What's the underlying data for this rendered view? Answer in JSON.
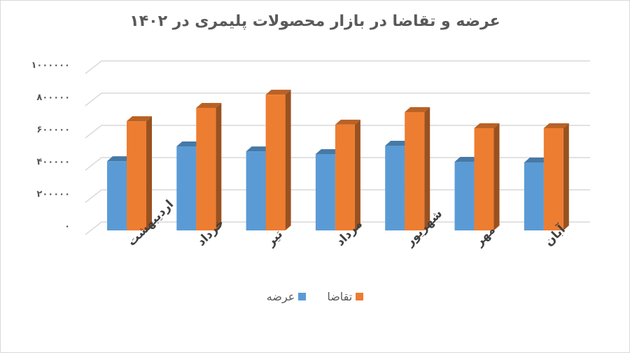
{
  "chart_data": {
    "type": "bar",
    "style": "3d-clustered-column",
    "title": "عرضه و تقاضا در بازار محصولات پلیمری در ۱۴۰۲",
    "categories": [
      "اردیبهشت",
      "خرداد",
      "تیر",
      "مرداد",
      "شهریور",
      "مهر",
      "آبان"
    ],
    "series": [
      {
        "name": "عرضه",
        "color": "#5b9bd5",
        "values": [
          430000,
          522000,
          491000,
          474000,
          526000,
          426000,
          422000
        ]
      },
      {
        "name": "تقاضا",
        "color": "#ed7d31",
        "values": [
          678000,
          761000,
          843000,
          657000,
          735000,
          635000,
          635000
        ]
      }
    ],
    "xlabel": "",
    "ylabel": "",
    "ylim": [
      0,
      1000000
    ],
    "yticks": [
      0,
      200000,
      400000,
      600000,
      800000,
      1000000
    ],
    "ytick_labels": [
      "۰",
      "۲۰۰۰۰۰",
      "۴۰۰۰۰۰",
      "۶۰۰۰۰۰",
      "۸۰۰۰۰۰",
      "۱۰۰۰۰۰۰"
    ],
    "grid": true,
    "legend_position": "bottom"
  },
  "legend": [
    {
      "label": "تقاضا",
      "color": "#ed7d31"
    },
    {
      "label": "عرضه",
      "color": "#5b9bd5"
    }
  ]
}
